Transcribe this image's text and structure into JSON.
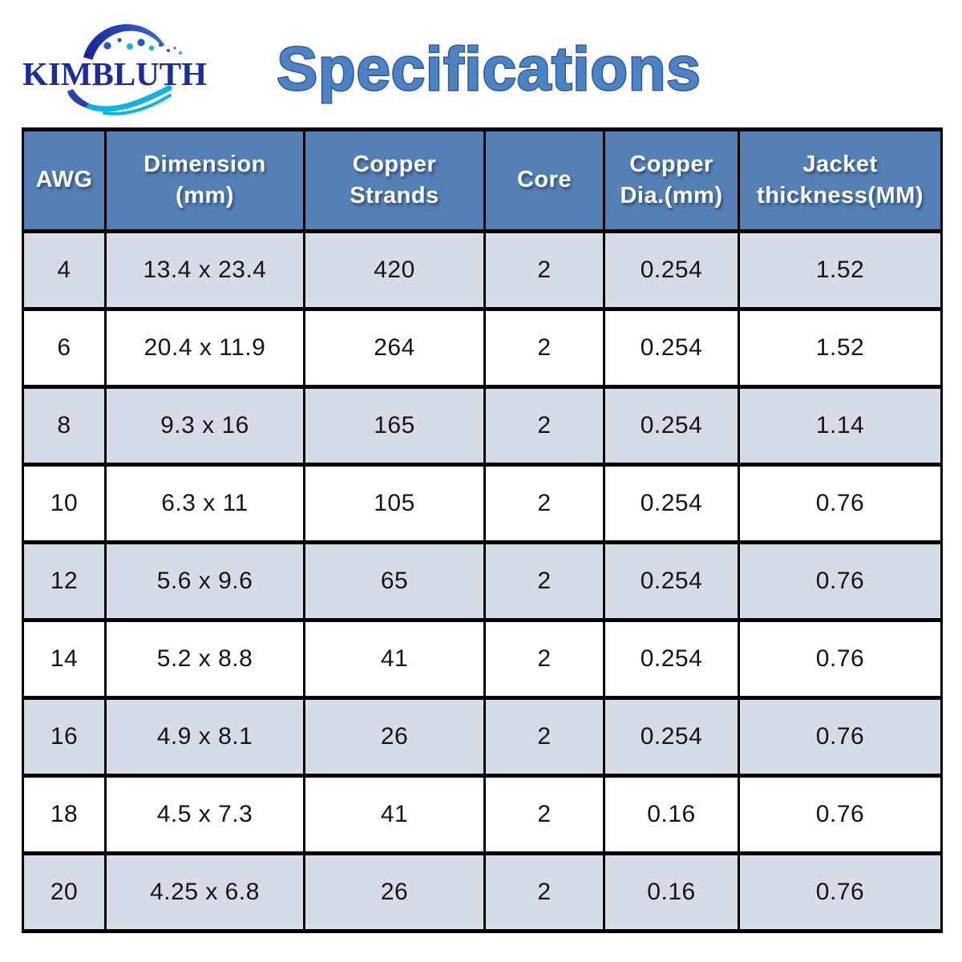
{
  "brand": {
    "name": "KIMBLUTH",
    "logo_colors": {
      "text": "#1b2c9c",
      "arc_dark": "#16229a",
      "arc_light": "#3a6fd0",
      "dot_blue": "#2553c5",
      "dot_cyan": "#14b0e8",
      "wave_blue": "#2a3fb0",
      "wave_cyan": "#0db3e8"
    }
  },
  "title": {
    "text": "Specifications",
    "fill": "#4d82c4",
    "outline": "#2d5b97"
  },
  "chart_data": {
    "type": "table",
    "title": "Specifications",
    "columns": [
      "AWG",
      "Dimension (mm)",
      "Copper Strands",
      "Core",
      "Copper Dia.(mm)",
      "Jacket thickness(MM)"
    ],
    "column_display": [
      [
        "AWG"
      ],
      [
        "Dimension",
        "(mm)"
      ],
      [
        "Copper",
        "Strands"
      ],
      [
        "Core"
      ],
      [
        "Copper",
        "Dia.(mm)"
      ],
      [
        "Jacket",
        "thickness(MM)"
      ]
    ],
    "rows": [
      [
        "4",
        "13.4 x 23.4",
        "420",
        "2",
        "0.254",
        "1.52"
      ],
      [
        "6",
        "20.4 x 11.9",
        "264",
        "2",
        "0.254",
        "1.52"
      ],
      [
        "8",
        "9.3 x 16",
        "165",
        "2",
        "0.254",
        "1.14"
      ],
      [
        "10",
        "6.3 x 11",
        "105",
        "2",
        "0.254",
        "0.76"
      ],
      [
        "12",
        "5.6 x 9.6",
        "65",
        "2",
        "0.254",
        "0.76"
      ],
      [
        "14",
        "5.2 x 8.8",
        "41",
        "2",
        "0.254",
        "0.76"
      ],
      [
        "16",
        "4.9 x 8.1",
        "26",
        "2",
        "0.254",
        "0.76"
      ],
      [
        "18",
        "4.5 x 7.3",
        "41",
        "2",
        "0.16",
        "0.76"
      ],
      [
        "20",
        "4.25 x 6.8",
        "26",
        "2",
        "0.16",
        "0.76"
      ]
    ],
    "style": {
      "header_bg": "#5480b6",
      "header_text": "#ffffff",
      "row_shaded_bg": "#d6dbe8",
      "row_plain_bg": "#ffffff",
      "border_color": "#000000",
      "shading_pattern": "rows 1,3,5,7,9 shaded; rows 2,4,6,8 white"
    }
  }
}
